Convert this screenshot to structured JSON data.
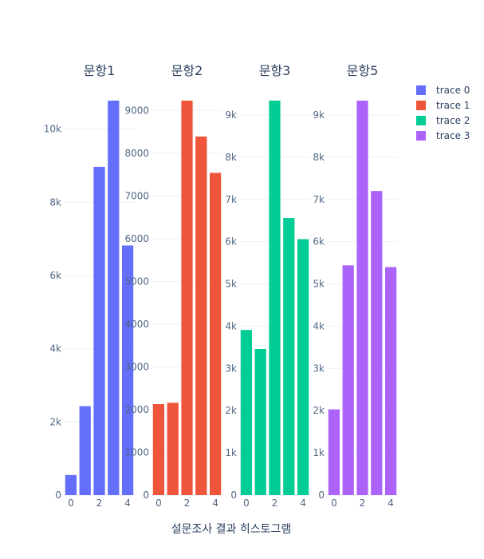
{
  "chart_data": {
    "type": "bar",
    "xlabel": "설문조사 결과 히스토그램",
    "grid": true,
    "legend_position": "right",
    "panels": [
      {
        "subtitle": "문항1",
        "series_name": "trace 0",
        "color": "#636efa",
        "x": [
          0,
          1,
          2,
          3,
          4
        ],
        "values": [
          550,
          2430,
          8970,
          10780,
          6820
        ],
        "ylim": [
          0,
          10780
        ],
        "yticks": [
          0,
          2000,
          4000,
          6000,
          8000,
          10000
        ],
        "ytick_labels": [
          "0",
          "2k",
          "4k",
          "6k",
          "8k",
          "10k"
        ],
        "xticks": [
          0,
          2,
          4
        ]
      },
      {
        "subtitle": "문항2",
        "series_name": "trace 1",
        "color": "#ef553b",
        "x": [
          0,
          1,
          2,
          3,
          4
        ],
        "values": [
          2130,
          2160,
          9230,
          8390,
          7540
        ],
        "ylim": [
          0,
          9230
        ],
        "yticks": [
          0,
          1000,
          2000,
          3000,
          4000,
          5000,
          6000,
          7000,
          8000,
          9000
        ],
        "ytick_labels": [
          "0",
          "1000",
          "2000",
          "3000",
          "4000",
          "5000",
          "6000",
          "7000",
          "8000",
          "9000"
        ],
        "xticks": [
          0,
          2,
          4
        ]
      },
      {
        "subtitle": "문항3",
        "series_name": "trace 2",
        "color": "#00cc96",
        "x": [
          0,
          1,
          2,
          3,
          4
        ],
        "values": [
          3910,
          3460,
          9340,
          6560,
          6060
        ],
        "ylim": [
          0,
          9340
        ],
        "yticks": [
          0,
          1000,
          2000,
          3000,
          4000,
          5000,
          6000,
          7000,
          8000,
          9000
        ],
        "ytick_labels": [
          "0",
          "1k",
          "2k",
          "3k",
          "4k",
          "5k",
          "6k",
          "7k",
          "8k",
          "9k"
        ],
        "xticks": [
          0,
          2,
          4
        ]
      },
      {
        "subtitle": "문항5",
        "series_name": "trace 3",
        "color": "#ab63fa",
        "x": [
          0,
          1,
          2,
          3,
          4
        ],
        "values": [
          2030,
          5440,
          9340,
          7200,
          5400
        ],
        "ylim": [
          0,
          9340
        ],
        "yticks": [
          0,
          1000,
          2000,
          3000,
          4000,
          5000,
          6000,
          7000,
          8000,
          9000
        ],
        "ytick_labels": [
          "0",
          "1k",
          "2k",
          "3k",
          "4k",
          "5k",
          "6k",
          "7k",
          "8k",
          "9k"
        ],
        "xticks": [
          0,
          2,
          4
        ]
      }
    ]
  }
}
